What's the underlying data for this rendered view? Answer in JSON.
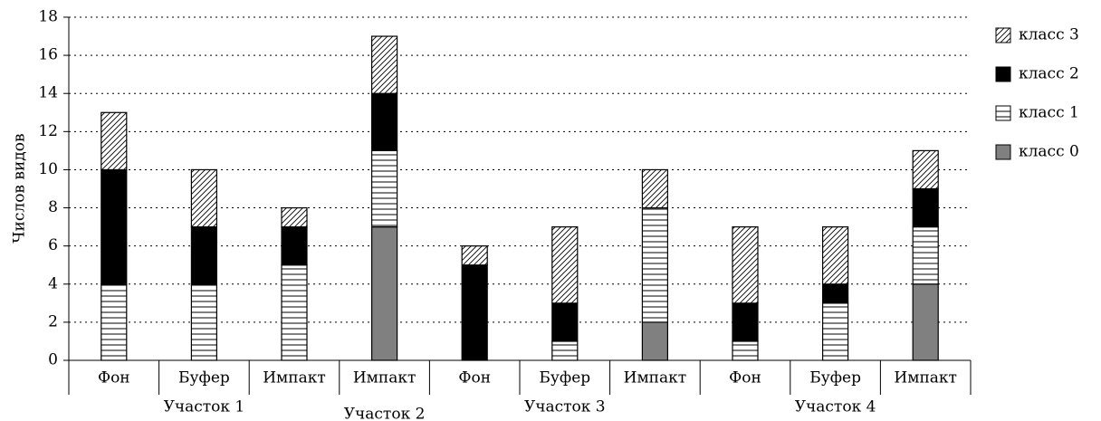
{
  "chart_data": {
    "type": "stacked-bar",
    "y_label": "Числов видов",
    "groups": [
      {
        "name": "Участок 1",
        "categories": [
          "Фон",
          "Буфер",
          "Импакт"
        ]
      },
      {
        "name": "Участок 2",
        "categories": [
          "Импакт"
        ]
      },
      {
        "name": "Участок 3",
        "categories": [
          "Фон",
          "Буфер",
          "Импакт"
        ]
      },
      {
        "name": "Участок 4",
        "categories": [
          "Фон",
          "Буфер",
          "Импакт"
        ]
      }
    ],
    "series": [
      {
        "name": "класс 0",
        "color": "#808080",
        "pattern": "solid",
        "values": [
          0,
          0,
          0,
          7,
          0,
          0,
          2,
          0,
          0,
          4
        ]
      },
      {
        "name": "класс 1",
        "color": "#000000",
        "pattern": "horizontal",
        "values": [
          4,
          4,
          5,
          4,
          0,
          1,
          6,
          1,
          3,
          3
        ]
      },
      {
        "name": "класс 2",
        "color": "#000000",
        "pattern": "solid",
        "values": [
          6,
          3,
          2,
          3,
          5,
          2,
          0,
          2,
          1,
          2
        ]
      },
      {
        "name": "класс 3",
        "color": "#000000",
        "pattern": "diagonal",
        "values": [
          3,
          3,
          1,
          3,
          1,
          4,
          2,
          4,
          3,
          2
        ]
      }
    ],
    "ylim": [
      0,
      18
    ],
    "yticks": [
      0,
      2,
      4,
      6,
      8,
      10,
      12,
      14,
      16,
      18
    ],
    "grid": true,
    "legend": "right"
  }
}
